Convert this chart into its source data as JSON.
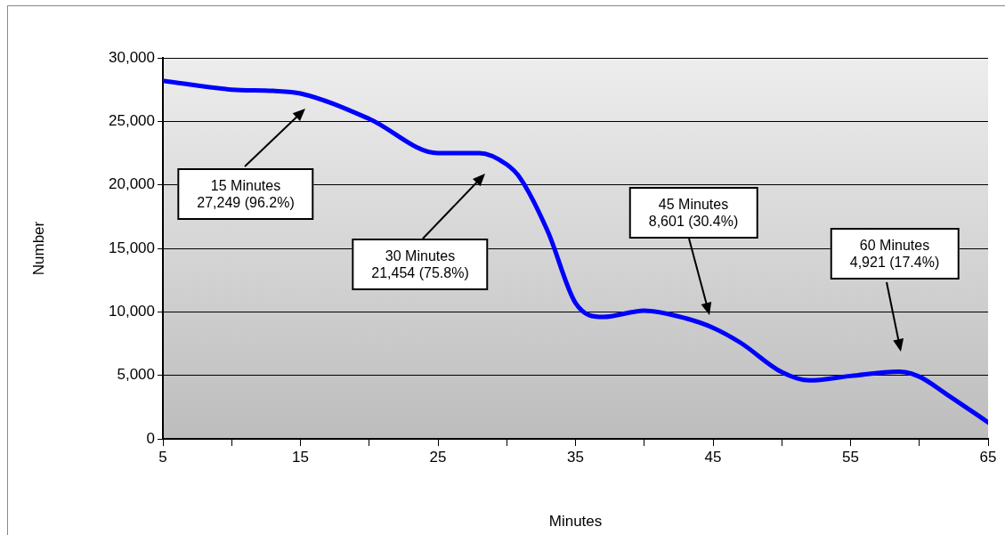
{
  "chart_data": {
    "type": "line",
    "xlabel": "Minutes",
    "ylabel": "Number",
    "x": [
      5,
      10,
      13,
      15,
      20,
      25,
      28,
      30,
      31,
      33,
      35,
      37,
      40,
      43,
      45,
      47,
      50,
      52,
      55,
      58.5,
      60,
      62,
      65
    ],
    "series": [
      {
        "color": "#0000ff",
        "values": [
          28200,
          27500,
          27400,
          27200,
          25200,
          22500,
          22500,
          21600,
          20500,
          16300,
          10700,
          9600,
          10100,
          9500,
          8750,
          7570,
          5250,
          4600,
          4950,
          5300,
          4900,
          3500,
          1300
        ]
      }
    ],
    "xlim": [
      5,
      65
    ],
    "xticks": [
      5,
      {
        "value": 10,
        "label": null
      },
      15,
      {
        "value": 20,
        "label": null
      },
      25,
      {
        "value": 30,
        "label": null
      },
      35,
      {
        "value": 40,
        "label": null
      },
      45,
      {
        "value": 50,
        "label": null
      },
      55,
      {
        "value": 60,
        "label": null
      },
      65
    ],
    "ylim": [
      0,
      30000
    ],
    "yticks": [
      {
        "value": 0,
        "label": "0"
      },
      {
        "value": 5000,
        "label": "5,000"
      },
      {
        "value": 10000,
        "label": "10,000"
      },
      {
        "value": 15000,
        "label": "15,000"
      },
      {
        "value": 20000,
        "label": "20,000"
      },
      {
        "value": 25000,
        "label": "25,000"
      },
      {
        "value": 30000,
        "label": "30,000"
      }
    ],
    "grid": "y",
    "legend": false,
    "marker": "none",
    "line_style": "solid",
    "annotations": [
      "15 Minutes\n27,249 (96.2%)",
      "30 Minutes\n21,454 (75.8%)",
      "45 Minutes\n8,601 (30.4%)",
      "60 Minutes\n4,921 (17.4%)"
    ]
  }
}
